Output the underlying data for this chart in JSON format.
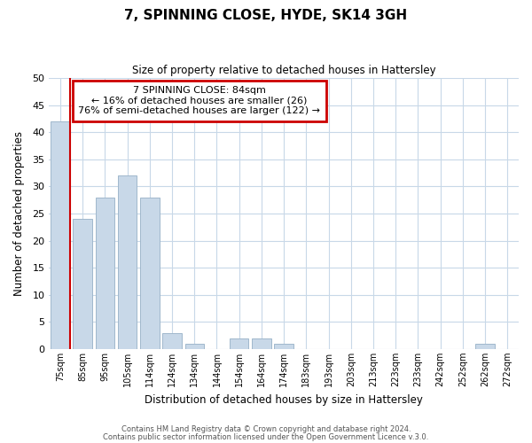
{
  "title": "7, SPINNING CLOSE, HYDE, SK14 3GH",
  "subtitle": "Size of property relative to detached houses in Hattersley",
  "xlabel": "Distribution of detached houses by size in Hattersley",
  "ylabel": "Number of detached properties",
  "bar_labels": [
    "75sqm",
    "85sqm",
    "95sqm",
    "105sqm",
    "114sqm",
    "124sqm",
    "134sqm",
    "144sqm",
    "154sqm",
    "164sqm",
    "174sqm",
    "183sqm",
    "193sqm",
    "203sqm",
    "213sqm",
    "223sqm",
    "233sqm",
    "242sqm",
    "252sqm",
    "262sqm",
    "272sqm"
  ],
  "bar_values": [
    42,
    24,
    28,
    32,
    28,
    3,
    1,
    0,
    2,
    2,
    1,
    0,
    0,
    0,
    0,
    0,
    0,
    0,
    0,
    1,
    0
  ],
  "bar_color": "#c8d8e8",
  "bar_edge_color": "#a0b8cc",
  "highlight_line_color": "#cc0000",
  "ylim": [
    0,
    50
  ],
  "yticks": [
    0,
    5,
    10,
    15,
    20,
    25,
    30,
    35,
    40,
    45,
    50
  ],
  "annotation_title": "7 SPINNING CLOSE: 84sqm",
  "annotation_line1": "← 16% of detached houses are smaller (26)",
  "annotation_line2": "76% of semi-detached houses are larger (122) →",
  "annotation_box_color": "#cc0000",
  "footer_line1": "Contains HM Land Registry data © Crown copyright and database right 2024.",
  "footer_line2": "Contains public sector information licensed under the Open Government Licence v.3.0.",
  "bg_color": "#ffffff",
  "grid_color": "#c8d8e8"
}
